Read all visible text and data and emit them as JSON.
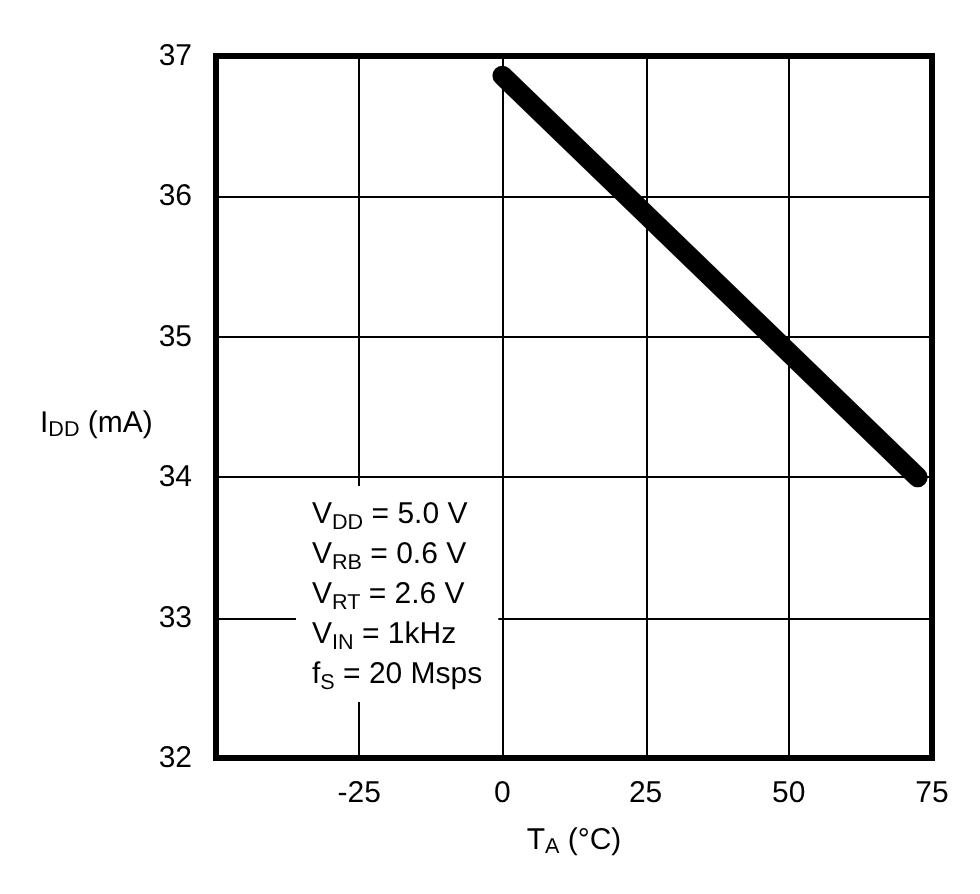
{
  "chart_data": {
    "type": "line",
    "xlabel": "T$_{A}$ (°C)",
    "ylabel": "I$_{DD}$ (mA)",
    "x": [
      0,
      72.5
    ],
    "series": [
      {
        "color": "#000000",
        "values": [
          36.86,
          34.0
        ]
      }
    ],
    "xlim": [
      -50,
      75
    ],
    "xticks": [
      -25,
      0,
      25,
      50,
      75
    ],
    "ylim": [
      32,
      37
    ],
    "yticks": [
      32,
      33,
      34,
      35,
      36,
      37
    ],
    "grid": true,
    "line_style": "solid",
    "annotations": [
      "V$_{DD}$ = 5.0 V",
      "V$_{RB}$ = 0.6 V",
      "V$_{RT}$ = 2.6 V",
      "V$_{IN}$ = 1kHz",
      "f$_{S}$ = 20 Msps"
    ]
  }
}
